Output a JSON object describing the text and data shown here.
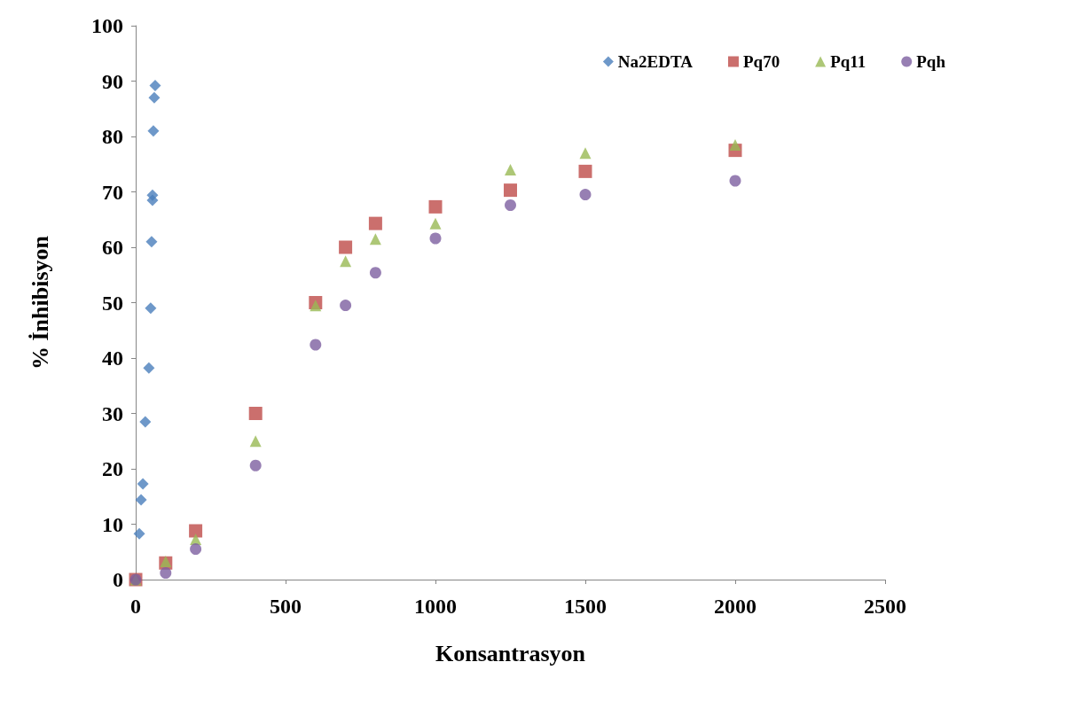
{
  "chart_data": {
    "type": "scatter",
    "xlabel": "Konsantrasyon",
    "ylabel": "% İnhibisyon",
    "xlim": [
      0,
      2500
    ],
    "xticks": [
      0,
      500,
      1000,
      1500,
      2000,
      2500
    ],
    "ylim": [
      0,
      100
    ],
    "yticks": [
      0,
      10,
      20,
      30,
      40,
      50,
      60,
      70,
      80,
      90,
      100
    ],
    "grid": false,
    "legend": "top right",
    "series": [
      {
        "name": "Na2EDTA",
        "color": "#4a7ebb",
        "marker": "diamond",
        "x": [
          0,
          12,
          18,
          24,
          32,
          44,
          50,
          53,
          56,
          56,
          59,
          62,
          65
        ],
        "values": [
          0,
          8.3,
          14.4,
          17.3,
          28.5,
          38.2,
          49,
          61,
          68.5,
          69.4,
          81,
          87,
          89.2
        ]
      },
      {
        "name": "Pq70",
        "color": "#be4b48",
        "marker": "square",
        "x": [
          0,
          100,
          200,
          400,
          600,
          700,
          800,
          1000,
          1250,
          1500,
          2000
        ],
        "values": [
          0,
          3,
          8.8,
          30,
          50,
          60,
          64.3,
          67.3,
          70.3,
          73.7,
          77.5
        ]
      },
      {
        "name": "Pq11",
        "color": "#98b954",
        "marker": "triangle",
        "x": [
          0,
          100,
          200,
          400,
          600,
          700,
          800,
          1000,
          1250,
          1500,
          2000
        ],
        "values": [
          0,
          3.3,
          7.3,
          25,
          49.5,
          57.5,
          61.5,
          64.3,
          74,
          77,
          78.5
        ]
      },
      {
        "name": "Pqh",
        "color": "#7d5fa0",
        "marker": "circle",
        "x": [
          0,
          100,
          200,
          400,
          600,
          700,
          800,
          1000,
          1250,
          1500,
          2000
        ],
        "values": [
          0,
          1.2,
          5.5,
          20.6,
          42.4,
          49.5,
          55.4,
          61.6,
          67.6,
          69.5,
          72
        ]
      }
    ]
  }
}
